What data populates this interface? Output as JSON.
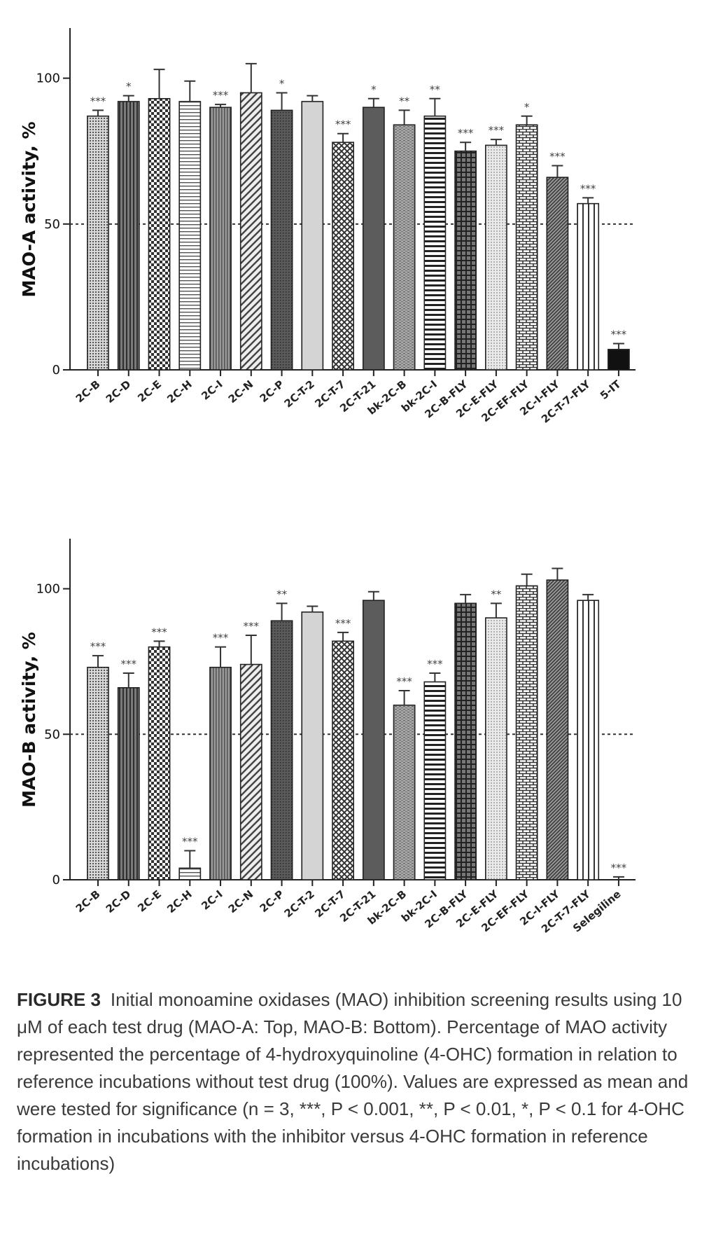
{
  "chart_data": [
    {
      "type": "bar",
      "title": "",
      "xlabel": "",
      "ylabel": "MAO-A activity, %",
      "ylim": [
        0,
        110
      ],
      "yticks": [
        0,
        50,
        100
      ],
      "reference_line": 50,
      "categories": [
        "2C-B",
        "2C-D",
        "2C-E",
        "2C-H",
        "2C-I",
        "2C-N",
        "2C-P",
        "2C-T-2",
        "2C-T-7",
        "2C-T-21",
        "bk-2C-B",
        "bk-2C-I",
        "2C-B-FLY",
        "2C-E-FLY",
        "2C-EF-FLY",
        "2C-I-FLY",
        "2C-T-7-FLY",
        "5-IT"
      ],
      "values": [
        87,
        92,
        93,
        92,
        90,
        95,
        89,
        92,
        78,
        90,
        84,
        87,
        75,
        77,
        84,
        66,
        57,
        7
      ],
      "errors": [
        2,
        2,
        10,
        7,
        1,
        10,
        6,
        2,
        3,
        3,
        5,
        6,
        3,
        2,
        3,
        4,
        2,
        2
      ],
      "significance": [
        "***",
        "*",
        "",
        "",
        "***",
        "",
        "*",
        "",
        "***",
        "*",
        "**",
        "**",
        "***",
        "***",
        "*",
        "***",
        "***",
        "***"
      ],
      "patterns": [
        "fine-dots",
        "vstripe-dark",
        "checker",
        "hstripe",
        "vstripe-fine",
        "diag-wide",
        "dark-fine",
        "light",
        "xhatch",
        "solid-dark",
        "hgrain",
        "hstripe-wide",
        "grid",
        "dots-light",
        "brick",
        "diag-dense",
        "vstripe-wide",
        "solid-black"
      ]
    },
    {
      "type": "bar",
      "title": "",
      "xlabel": "",
      "ylabel": "MAO-B activity, %",
      "ylim": [
        0,
        110
      ],
      "yticks": [
        0,
        50,
        100
      ],
      "reference_line": 50,
      "categories": [
        "2C-B",
        "2C-D",
        "2C-E",
        "2C-H",
        "2C-I",
        "2C-N",
        "2C-P",
        "2C-T-2",
        "2C-T-7",
        "2C-T-21",
        "bk-2C-B",
        "bk-2C-I",
        "2C-B-FLY",
        "2C-E-FLY",
        "2C-EF-FLY",
        "2C-I-FLY",
        "2C-T-7-FLY",
        "Selegiline"
      ],
      "values": [
        73,
        66,
        80,
        4,
        73,
        74,
        89,
        92,
        82,
        96,
        60,
        68,
        95,
        90,
        101,
        103,
        96,
        0
      ],
      "errors": [
        4,
        5,
        2,
        6,
        7,
        10,
        6,
        2,
        3,
        3,
        5,
        3,
        3,
        5,
        4,
        4,
        2,
        1
      ],
      "significance": [
        "***",
        "***",
        "***",
        "***",
        "***",
        "***",
        "**",
        "",
        "***",
        "",
        "***",
        "***",
        "",
        "**",
        "",
        "",
        "",
        "***"
      ],
      "patterns": [
        "fine-dots",
        "vstripe-dark",
        "checker",
        "hstripe",
        "vstripe-fine",
        "diag-wide",
        "dark-fine",
        "light",
        "xhatch",
        "solid-dark",
        "hgrain",
        "hstripe-wide",
        "grid",
        "dots-light",
        "brick",
        "diag-dense",
        "vstripe-wide",
        "solid-black"
      ]
    }
  ],
  "caption": {
    "label": "FIGURE 3",
    "text": "Initial monoamine oxidases (MAO) inhibition screening results using 10 μM of each test drug (MAO-A: Top, MAO-B: Bottom). Percentage of MAO activity represented the percentage of 4-hydroxyquinoline (4-OHC) formation in relation to reference incubations without test drug (100%). Values are expressed as mean and were tested for significance (n = 3, ***, P < 0.001, **, P < 0.01, *, P < 0.1 for 4-OHC formation in incubations with the inhibitor versus 4-OHC formation in reference incubations)"
  }
}
